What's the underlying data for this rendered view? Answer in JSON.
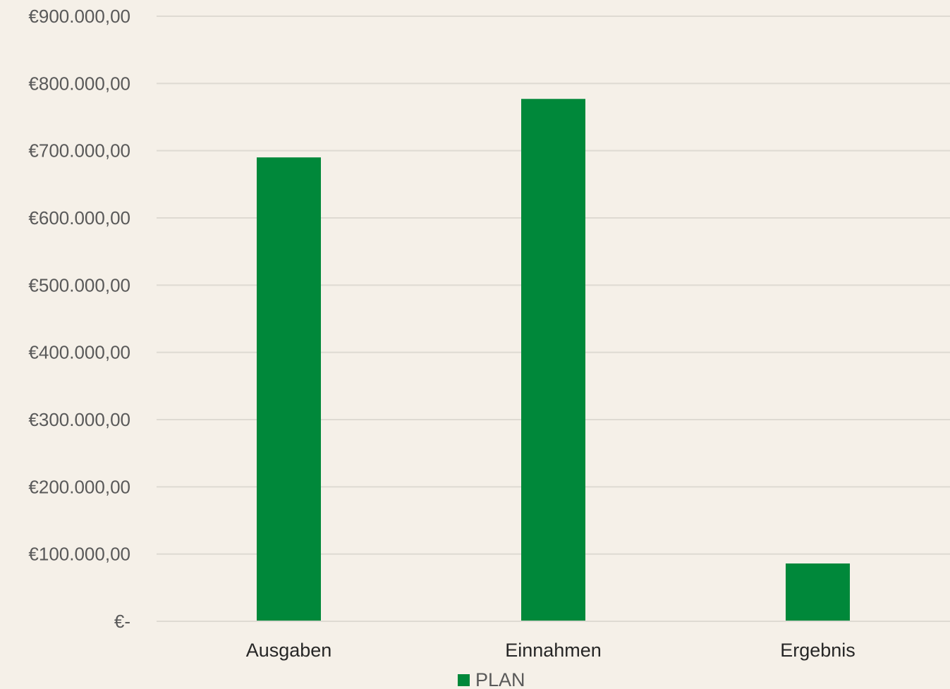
{
  "colors": {
    "background": "#f5f0e8",
    "bar": "#00883a",
    "gridline": "#dedad2",
    "tick_text": "#595959",
    "category_text": "#262626"
  },
  "chart_data": {
    "type": "bar",
    "categories": [
      "Ausgaben",
      "Einnahmen",
      "Ergebnis"
    ],
    "series": [
      {
        "name": "PLAN",
        "color": "#00883a",
        "values": [
          690000,
          777000,
          86000
        ]
      }
    ],
    "ylim": [
      0,
      900000
    ],
    "y_ticks": [
      {
        "value": 0,
        "label": "€-"
      },
      {
        "value": 100000,
        "label": "€100.000,00"
      },
      {
        "value": 200000,
        "label": "€200.000,00"
      },
      {
        "value": 300000,
        "label": "€300.000,00"
      },
      {
        "value": 400000,
        "label": "€400.000,00"
      },
      {
        "value": 500000,
        "label": "€500.000,00"
      },
      {
        "value": 600000,
        "label": "€600.000,00"
      },
      {
        "value": 700000,
        "label": "€700.000,00"
      },
      {
        "value": 800000,
        "label": "€800.000,00"
      },
      {
        "value": 900000,
        "label": "€900.000,00"
      }
    ],
    "grid": true,
    "legend_position": "bottom"
  },
  "legend": {
    "label": "PLAN"
  }
}
